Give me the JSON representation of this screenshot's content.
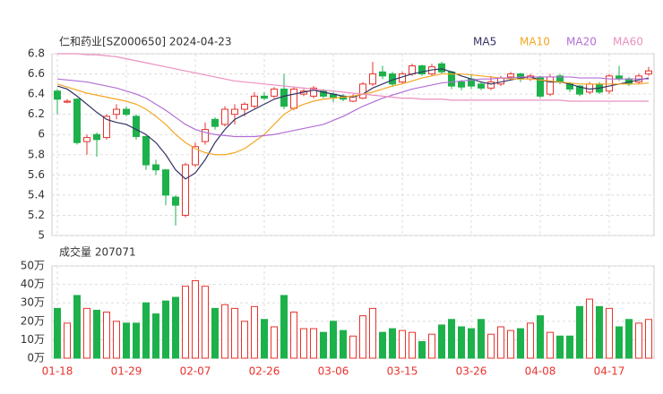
{
  "chart_data": [
    {
      "type": "candlestick",
      "title": "仁和药业[SZ000650] 2024-04-23",
      "up_color": "#e8332d",
      "down_color": "#1db14b",
      "open": [
        6.43,
        6.32,
        6.35,
        5.93,
        6.0,
        5.97,
        6.2,
        6.25,
        6.18,
        5.98,
        5.7,
        5.65,
        5.38,
        5.2,
        5.7,
        5.93,
        6.15,
        6.1,
        6.2,
        6.25,
        6.28,
        6.38,
        6.38,
        6.45,
        6.26,
        6.4,
        6.38,
        6.43,
        6.4,
        6.38,
        6.33,
        6.36,
        6.5,
        6.62,
        6.6,
        6.52,
        6.6,
        6.68,
        6.6,
        6.7,
        6.62,
        6.52,
        6.55,
        6.5,
        6.46,
        6.5,
        6.57,
        6.6,
        6.55,
        6.56,
        6.4,
        6.58,
        6.5,
        6.48,
        6.42,
        6.5,
        6.43,
        6.58,
        6.55,
        6.52,
        6.6
      ],
      "high": [
        6.45,
        6.35,
        6.36,
        6.0,
        6.02,
        6.2,
        6.3,
        6.28,
        6.2,
        5.99,
        5.75,
        5.66,
        5.4,
        5.72,
        5.92,
        6.12,
        6.17,
        6.28,
        6.3,
        6.32,
        6.42,
        6.42,
        6.47,
        6.6,
        6.47,
        6.45,
        6.48,
        6.45,
        6.42,
        6.4,
        6.4,
        6.52,
        6.72,
        6.68,
        6.62,
        6.62,
        6.7,
        6.69,
        6.7,
        6.72,
        6.63,
        6.54,
        6.6,
        6.52,
        6.58,
        6.58,
        6.62,
        6.61,
        6.6,
        6.58,
        6.6,
        6.6,
        6.52,
        6.49,
        6.52,
        6.52,
        6.6,
        6.68,
        6.57,
        6.6,
        6.67
      ],
      "low": [
        6.2,
        6.31,
        5.9,
        5.8,
        5.78,
        5.95,
        6.15,
        6.18,
        5.95,
        5.65,
        5.6,
        5.3,
        5.1,
        5.18,
        5.68,
        5.9,
        6.05,
        6.08,
        6.1,
        6.18,
        6.26,
        6.34,
        6.36,
        6.25,
        6.24,
        6.38,
        6.36,
        6.36,
        6.32,
        6.33,
        6.32,
        6.35,
        6.48,
        6.55,
        6.47,
        6.5,
        6.58,
        6.58,
        6.58,
        6.6,
        6.45,
        6.44,
        6.45,
        6.44,
        6.44,
        6.48,
        6.55,
        6.52,
        6.53,
        6.36,
        6.38,
        6.5,
        6.42,
        6.38,
        6.4,
        6.4,
        6.4,
        6.53,
        6.48,
        6.5,
        6.58
      ],
      "close": [
        6.35,
        6.33,
        5.92,
        5.97,
        5.95,
        6.18,
        6.25,
        6.2,
        5.98,
        5.7,
        5.65,
        5.4,
        5.3,
        5.7,
        5.88,
        6.05,
        6.08,
        6.25,
        6.25,
        6.3,
        6.38,
        6.36,
        6.45,
        6.28,
        6.45,
        6.43,
        6.46,
        6.38,
        6.37,
        6.35,
        6.38,
        6.5,
        6.6,
        6.58,
        6.5,
        6.6,
        6.68,
        6.6,
        6.67,
        6.62,
        6.48,
        6.47,
        6.48,
        6.46,
        6.52,
        6.56,
        6.6,
        6.55,
        6.58,
        6.38,
        6.57,
        6.52,
        6.45,
        6.4,
        6.5,
        6.42,
        6.58,
        6.55,
        6.5,
        6.58,
        6.63
      ],
      "series": [
        {
          "name": "MA5",
          "color": "#333366",
          "values": [
            6.48,
            6.45,
            6.38,
            6.3,
            6.22,
            6.15,
            6.12,
            6.1,
            6.05,
            6.0,
            5.92,
            5.8,
            5.65,
            5.56,
            5.62,
            5.75,
            5.92,
            6.05,
            6.15,
            6.2,
            6.25,
            6.3,
            6.35,
            6.38,
            6.4,
            6.42,
            6.44,
            6.42,
            6.4,
            6.38,
            6.37,
            6.4,
            6.46,
            6.5,
            6.54,
            6.57,
            6.6,
            6.62,
            6.64,
            6.65,
            6.62,
            6.58,
            6.55,
            6.52,
            6.5,
            6.52,
            6.54,
            6.56,
            6.57,
            6.54,
            6.52,
            6.52,
            6.5,
            6.47,
            6.45,
            6.46,
            6.48,
            6.5,
            6.52,
            6.54,
            6.56
          ]
        },
        {
          "name": "MA10",
          "color": "#f5a623",
          "values": [
            6.5,
            6.47,
            6.44,
            6.41,
            6.39,
            6.37,
            6.35,
            6.33,
            6.3,
            6.25,
            6.18,
            6.1,
            6.0,
            5.92,
            5.86,
            5.82,
            5.8,
            5.8,
            5.82,
            5.86,
            5.93,
            6.0,
            6.1,
            6.2,
            6.26,
            6.3,
            6.33,
            6.35,
            6.36,
            6.37,
            6.38,
            6.4,
            6.42,
            6.45,
            6.48,
            6.5,
            6.53,
            6.56,
            6.58,
            6.6,
            6.6,
            6.6,
            6.59,
            6.58,
            6.57,
            6.56,
            6.55,
            6.55,
            6.55,
            6.54,
            6.53,
            6.52,
            6.51,
            6.5,
            6.5,
            6.5,
            6.5,
            6.5,
            6.5,
            6.5,
            6.51
          ]
        },
        {
          "name": "MA20",
          "color": "#b36fd6",
          "values": [
            6.55,
            6.54,
            6.53,
            6.52,
            6.5,
            6.48,
            6.46,
            6.43,
            6.4,
            6.36,
            6.3,
            6.24,
            6.17,
            6.1,
            6.05,
            6.02,
            6.0,
            5.99,
            5.98,
            5.98,
            5.98,
            5.99,
            6.0,
            6.02,
            6.04,
            6.06,
            6.08,
            6.1,
            6.14,
            6.18,
            6.23,
            6.28,
            6.32,
            6.36,
            6.39,
            6.42,
            6.45,
            6.47,
            6.49,
            6.51,
            6.52,
            6.53,
            6.54,
            6.55,
            6.55,
            6.56,
            6.56,
            6.57,
            6.57,
            6.57,
            6.57,
            6.57,
            6.57,
            6.56,
            6.56,
            6.56,
            6.55,
            6.55,
            6.55,
            6.55,
            6.55
          ]
        },
        {
          "name": "MA60",
          "color": "#ec8fc0",
          "values": [
            6.8,
            6.8,
            6.8,
            6.79,
            6.79,
            6.78,
            6.77,
            6.75,
            6.73,
            6.71,
            6.69,
            6.67,
            6.65,
            6.63,
            6.61,
            6.59,
            6.57,
            6.55,
            6.53,
            6.52,
            6.51,
            6.5,
            6.49,
            6.48,
            6.47,
            6.46,
            6.45,
            6.44,
            6.43,
            6.42,
            6.41,
            6.4,
            6.39,
            6.38,
            6.37,
            6.36,
            6.36,
            6.35,
            6.35,
            6.35,
            6.34,
            6.34,
            6.34,
            6.34,
            6.34,
            6.34,
            6.34,
            6.34,
            6.34,
            6.34,
            6.34,
            6.34,
            6.33,
            6.33,
            6.33,
            6.33,
            6.33,
            6.33,
            6.33,
            6.33,
            6.33
          ]
        }
      ],
      "ylim": [
        5,
        6.8
      ],
      "yticks": [
        6.8,
        6.6,
        6.4,
        6.2,
        6,
        5.8,
        5.6,
        5.4,
        5.2,
        5
      ],
      "grid": true
    },
    {
      "type": "bar",
      "title": "成交量 207071",
      "categories": [
        "01-18",
        null,
        null,
        null,
        null,
        null,
        null,
        "01-29",
        null,
        null,
        null,
        null,
        null,
        null,
        "02-07",
        null,
        null,
        null,
        null,
        null,
        null,
        "02-26",
        null,
        null,
        null,
        null,
        null,
        null,
        "03-06",
        null,
        null,
        null,
        null,
        null,
        null,
        "03-15",
        null,
        null,
        null,
        null,
        null,
        null,
        "03-26",
        null,
        null,
        null,
        null,
        null,
        null,
        "04-08",
        null,
        null,
        null,
        null,
        null,
        null,
        "04-17",
        null,
        null,
        null,
        null
      ],
      "values": [
        27,
        19,
        34,
        27,
        26,
        25,
        20,
        19,
        19,
        30,
        24,
        31,
        33,
        39,
        42,
        39,
        27,
        29,
        27,
        20,
        28,
        21,
        17,
        34,
        25,
        16,
        16,
        14,
        20,
        15,
        12,
        23,
        27,
        14,
        16,
        15,
        14,
        9,
        13,
        18,
        21,
        17,
        16,
        21,
        13,
        17,
        15,
        16,
        19,
        23,
        14,
        12,
        12,
        28,
        32,
        28,
        27,
        17,
        21,
        19,
        21
      ],
      "ylim": [
        0,
        50
      ],
      "yticks": [
        {
          "value": 50,
          "label": "50万"
        },
        {
          "value": 40,
          "label": "40万"
        },
        {
          "value": 30,
          "label": "30万"
        },
        {
          "value": 20,
          "label": "20万"
        },
        {
          "value": 10,
          "label": "10万"
        },
        {
          "value": 0,
          "label": "0万"
        }
      ],
      "grid": true
    }
  ]
}
